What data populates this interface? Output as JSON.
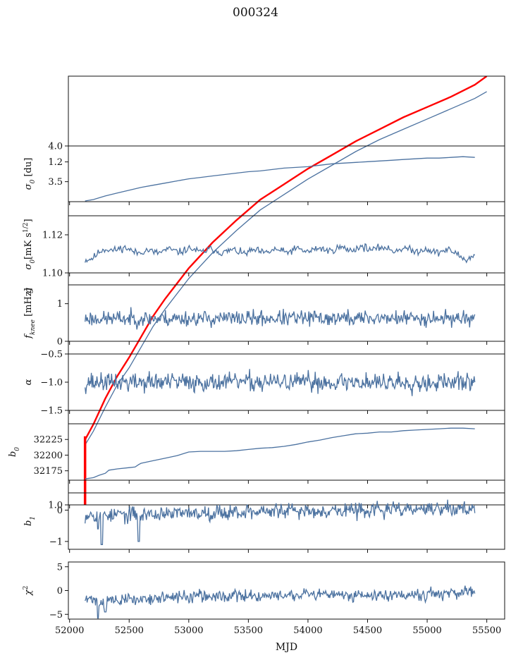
{
  "figure": {
    "title": "000324",
    "xlabel": "MJD"
  },
  "colors": {
    "series": "#4c72a0",
    "overlay": "#ff0000"
  },
  "chart_data": [
    {
      "type": "line",
      "id": "g",
      "ylabel": "g",
      "ylabel_sub": "",
      "ylim": [
        1.0,
        1.25
      ],
      "yticks": [
        1.0,
        1.2
      ],
      "ytick_labels": [
        "1.0",
        "1.2"
      ],
      "xlim": [
        51990,
        55650
      ],
      "series": [
        {
          "color": "#4c72a0",
          "x": [
            52130,
            52200,
            52300,
            52400,
            52500,
            52600,
            52700,
            52800,
            53000,
            53200,
            53400,
            53600,
            53800,
            54000,
            54200,
            54400,
            54600,
            54800,
            55000,
            55200,
            55400,
            55500
          ],
          "y": [
            1.035,
            1.043,
            1.057,
            1.07,
            1.08,
            1.092,
            1.104,
            1.114,
            1.132,
            1.147,
            1.16,
            1.172,
            1.181,
            1.19,
            1.198,
            1.206,
            1.213,
            1.219,
            1.225,
            1.231,
            1.237,
            1.241
          ]
        },
        {
          "color": "#ff0000",
          "x": [
            52130,
            52200,
            52300,
            52400,
            52500,
            52600,
            52700,
            52800,
            53000,
            53200,
            53400,
            53600,
            53800,
            54000,
            54200,
            54400,
            54600,
            54800,
            55000,
            55200,
            55400,
            55500
          ],
          "y": [
            1.038,
            1.047,
            1.062,
            1.075,
            1.086,
            1.098,
            1.11,
            1.12,
            1.138,
            1.153,
            1.166,
            1.178,
            1.187,
            1.196,
            1.204,
            1.212,
            1.219,
            1.226,
            1.232,
            1.238,
            1.245,
            1.25
          ]
        }
      ],
      "spike": {
        "x": 52130,
        "y_from": 1.0,
        "y_to": 1.04
      }
    },
    {
      "type": "line",
      "id": "sigma0-du",
      "ylabel": "σ",
      "ylabel_sub": "0",
      "ylabel_unit": " [du]",
      "ylim": [
        3.22,
        4.0
      ],
      "yticks": [
        3.5,
        4.0
      ],
      "ytick_labels": [
        "3.5",
        "4.0"
      ],
      "xlim": [
        51990,
        55650
      ],
      "series": [
        {
          "color": "#4c72a0",
          "x": [
            52130,
            52200,
            52300,
            52400,
            52500,
            52600,
            52700,
            52800,
            52900,
            53000,
            53100,
            53200,
            53300,
            53400,
            53500,
            53600,
            53700,
            53800,
            53900,
            54000,
            54100,
            54200,
            54300,
            54400,
            54500,
            54600,
            54700,
            54800,
            54900,
            55000,
            55100,
            55200,
            55300,
            55400
          ],
          "y": [
            3.23,
            3.25,
            3.3,
            3.34,
            3.38,
            3.42,
            3.45,
            3.48,
            3.51,
            3.54,
            3.56,
            3.58,
            3.6,
            3.62,
            3.64,
            3.65,
            3.67,
            3.69,
            3.7,
            3.71,
            3.73,
            3.75,
            3.76,
            3.77,
            3.78,
            3.79,
            3.8,
            3.81,
            3.82,
            3.83,
            3.83,
            3.84,
            3.85,
            3.84
          ]
        }
      ]
    },
    {
      "type": "line",
      "id": "sigma0-mk",
      "ylabel": "σ",
      "ylabel_sub": "0",
      "ylabel_unit": "[mK s",
      "ylabel_sup": "1/2",
      "ylabel_close": "]",
      "ylim": [
        1.1,
        1.13
      ],
      "yticks": [
        1.1,
        1.12
      ],
      "ytick_labels": [
        "1.10",
        "1.12"
      ],
      "xlim": [
        51990,
        55650
      ],
      "generator": {
        "x_start": 52130,
        "x_end": 55400,
        "n": 420,
        "seed": 11,
        "noise": 0.0012,
        "wave": 0.0008,
        "wave_period": 180,
        "anchors": [
          [
            52130,
            1.106
          ],
          [
            52250,
            1.111
          ],
          [
            52400,
            1.113
          ],
          [
            52600,
            1.111
          ],
          [
            53000,
            1.112
          ],
          [
            53500,
            1.111
          ],
          [
            54000,
            1.112
          ],
          [
            54500,
            1.113
          ],
          [
            54900,
            1.112
          ],
          [
            55250,
            1.111
          ],
          [
            55330,
            1.106
          ],
          [
            55400,
            1.109
          ]
        ]
      }
    },
    {
      "type": "line",
      "id": "fknee",
      "ylabel": "f",
      "ylabel_sub": "knee",
      "ylabel_unit": " [mHz]",
      "ylim": [
        0,
        1.5
      ],
      "yticks": [
        0,
        1
      ],
      "ytick_labels": [
        "0",
        "1"
      ],
      "xlim": [
        51990,
        55650
      ],
      "generator": {
        "x_start": 52130,
        "x_end": 55400,
        "n": 520,
        "seed": 23,
        "noise": 0.13,
        "wave": 0.02,
        "wave_period": 90,
        "anchors": [
          [
            52130,
            0.6
          ],
          [
            55400,
            0.62
          ]
        ]
      }
    },
    {
      "type": "line",
      "id": "alpha",
      "ylabel": "α",
      "ylabel_sub": "",
      "ylim": [
        -1.5,
        -0.5
      ],
      "yticks": [
        -1.5,
        -1.0,
        -0.5
      ],
      "ytick_labels": [
        "−1.5",
        "−1.0",
        "−0.5"
      ],
      "xlim": [
        51990,
        55650
      ],
      "generator": {
        "x_start": 52130,
        "x_end": 55400,
        "n": 560,
        "seed": 37,
        "noise": 0.1,
        "wave": 0.03,
        "wave_period": 70,
        "anchors": [
          [
            52130,
            -1.0
          ],
          [
            55400,
            -1.0
          ]
        ]
      }
    },
    {
      "type": "line",
      "id": "b0",
      "ylabel": "b",
      "ylabel_sub": "0",
      "ylim": [
        32160,
        32250
      ],
      "yticks": [
        32175,
        32200,
        32225
      ],
      "ytick_labels": [
        "32175",
        "32200",
        "32225"
      ],
      "xlim": [
        51990,
        55650
      ],
      "series": [
        {
          "color": "#4c72a0",
          "x": [
            52130,
            52200,
            52250,
            52300,
            52330,
            52400,
            52500,
            52550,
            52580,
            52600,
            52700,
            52800,
            52900,
            53000,
            53100,
            53200,
            53300,
            53400,
            53500,
            53600,
            53700,
            53800,
            53900,
            54000,
            54100,
            54200,
            54300,
            54400,
            54500,
            54600,
            54700,
            54800,
            54900,
            55000,
            55100,
            55200,
            55300,
            55400
          ],
          "y": [
            32162,
            32164,
            32168,
            32171,
            32176,
            32178,
            32180,
            32181,
            32185,
            32187,
            32191,
            32195,
            32199,
            32205,
            32206,
            32206,
            32206,
            32207,
            32209,
            32211,
            32212,
            32214,
            32217,
            32221,
            32224,
            32228,
            32231,
            32234,
            32235,
            32237,
            32237,
            32239,
            32240,
            32241,
            32242,
            32243,
            32243,
            32242
          ]
        }
      ]
    },
    {
      "type": "line",
      "id": "b1",
      "ylabel": "b",
      "ylabel_sub": "1",
      "ylim": [
        -1.25,
        0.55
      ],
      "yticks": [
        -1,
        0
      ],
      "ytick_labels": [
        "−1",
        "0"
      ],
      "xlim": [
        51990,
        55650
      ],
      "generator": {
        "x_start": 52130,
        "x_end": 55400,
        "n": 560,
        "seed": 53,
        "noise": 0.14,
        "wave": 0.05,
        "wave_period": 120,
        "anchors": [
          [
            52130,
            -0.15
          ],
          [
            52500,
            -0.15
          ],
          [
            53500,
            -0.05
          ],
          [
            54500,
            0.0
          ],
          [
            55400,
            0.05
          ]
        ],
        "dips": [
          [
            52270,
            -1.1
          ],
          [
            52580,
            -1.0
          ],
          [
            52240,
            -0.6
          ]
        ]
      }
    },
    {
      "type": "line",
      "id": "chi2",
      "ylabel": "χ",
      "ylabel_sup": "2",
      "ylim": [
        -6,
        6
      ],
      "yticks": [
        -5,
        0,
        5
      ],
      "ytick_labels": [
        "−5",
        "0",
        "5"
      ],
      "xlim": [
        51990,
        55650
      ],
      "xticks": [
        52000,
        52500,
        53000,
        53500,
        54000,
        54500,
        55000,
        55500
      ],
      "xtick_labels": [
        "52000",
        "52500",
        "53000",
        "53500",
        "54000",
        "54500",
        "55000",
        "55500"
      ],
      "generator": {
        "x_start": 52130,
        "x_end": 55400,
        "n": 560,
        "seed": 71,
        "noise": 0.75,
        "wave": 0.3,
        "wave_period": 150,
        "anchors": [
          [
            52130,
            -1.8
          ],
          [
            52300,
            -2.3
          ],
          [
            52500,
            -1.9
          ],
          [
            53000,
            -1.3
          ],
          [
            54000,
            -1.0
          ],
          [
            55400,
            -0.6
          ]
        ],
        "dips": [
          [
            52240,
            -5.8
          ],
          [
            52300,
            -4.5
          ]
        ]
      }
    }
  ]
}
